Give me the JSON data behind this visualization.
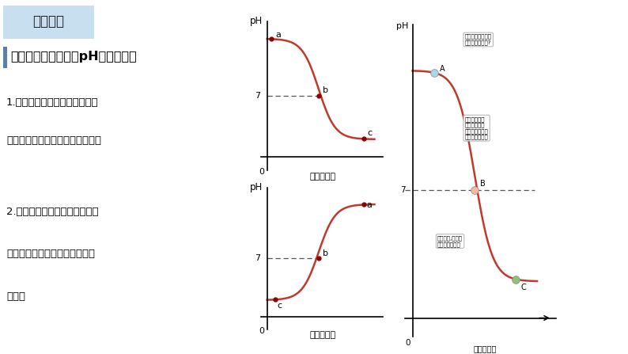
{
  "bg_color": "#ffffff",
  "title_box_text": "新知探究",
  "title_box_bg": "#c8dff0",
  "subtitle_text": "中和反应过程中溶液pH的变化情况",
  "subtitle_bar_color": "#5b7fa6",
  "text1_line1": "1.向碱溶液中加入酸溶液（以向",
  "text1_line2": "氢氧化钠溶液中加入稀盐酸为例）",
  "text2_line1": "2.向酸溶液中加入碱溶液（以向",
  "text2_line2": "稀盐酸溶液中加入氢氧化钠溶液",
  "text2_line3": "为例）",
  "curve_color": "#c0392b",
  "dashed_color": "#555555",
  "point_color": "#8B0000",
  "graph1_xlabel": "酸溶液的量",
  "graph2_xlabel": "碱溶液的量",
  "graph_big_xlabel": "酸溶液的量",
  "graph_ylabel": "pH",
  "bubble1": "反应已经发生了，\n为啥我还是碱性?",
  "bubble2": "你们都不是恰\n好完全反应的\n点，我才是恰好\n完全反应的点。",
  "bubble3": "我明白了,那我就\n是加酸过量了！"
}
